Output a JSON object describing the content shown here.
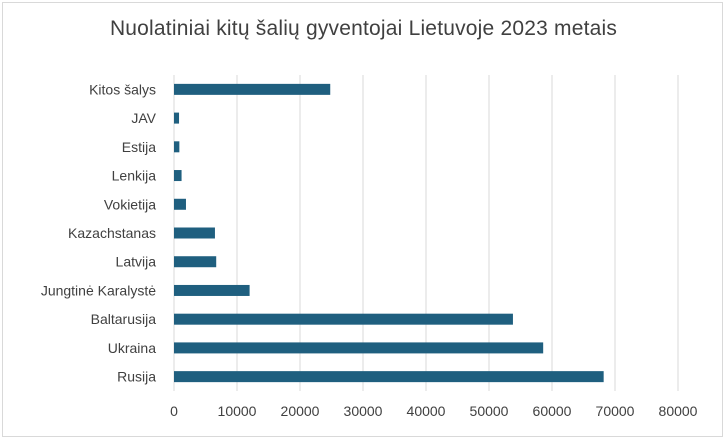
{
  "chart_data": {
    "type": "bar",
    "orientation": "horizontal",
    "title": "Nuolatiniai kitų šalių gyventojai Lietuvoje 2023 metais",
    "categories": [
      "Rusija",
      "Ukraina",
      "Baltarusija",
      "Jungtinė Karalystė",
      "Latvija",
      "Kazachstanas",
      "Vokietija",
      "Lenkija",
      "Estija",
      "JAV",
      "Kitos šalys"
    ],
    "values": [
      68200,
      58600,
      53800,
      12000,
      6700,
      6500,
      1900,
      1200,
      850,
      800,
      24800
    ],
    "xlim": [
      0,
      80000
    ],
    "xticks": [
      0,
      10000,
      20000,
      30000,
      40000,
      50000,
      60000,
      70000,
      80000
    ],
    "xtick_labels": [
      "0",
      "10000",
      "20000",
      "30000",
      "40000",
      "50000",
      "60000",
      "70000",
      "80000"
    ],
    "grid": "vertical",
    "bar_color": "#1f5f7f",
    "grid_color": "#d9d9d9",
    "xlabel": "",
    "ylabel": ""
  }
}
